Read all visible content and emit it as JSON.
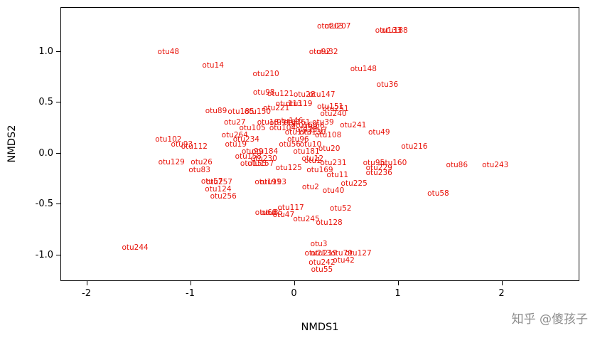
{
  "watermark": {
    "text": "知乎 @傻孩子"
  },
  "chart_data": {
    "type": "scatter",
    "title": "",
    "xlabel": "NMDS1",
    "ylabel": "NMDS2",
    "xlim": [
      -2.25,
      2.75
    ],
    "ylim": [
      -1.26,
      1.43
    ],
    "x_ticks": [
      -2,
      -1,
      0,
      1,
      2
    ],
    "x_tick_labels": [
      "-2",
      "-1",
      "0",
      "1",
      "2"
    ],
    "y_ticks": [
      -1.0,
      -0.5,
      0.0,
      0.5,
      1.0
    ],
    "y_tick_labels": [
      "-1.0",
      "-0.5",
      "0.0",
      "0.5",
      "1.0"
    ],
    "grid": false,
    "legend": false,
    "point_color": "#e8130a",
    "points": [
      {
        "label": "otu48",
        "x": -1.21,
        "y": 0.99
      },
      {
        "label": "otu14",
        "x": -0.78,
        "y": 0.86
      },
      {
        "label": "otu210",
        "x": -0.27,
        "y": 0.77
      },
      {
        "label": "otu92",
        "x": 0.25,
        "y": 0.99
      },
      {
        "label": "otu32",
        "x": 0.32,
        "y": 0.99
      },
      {
        "label": "otu148",
        "x": 0.67,
        "y": 0.82
      },
      {
        "label": "otu36",
        "x": 0.9,
        "y": 0.67
      },
      {
        "label": "otu203",
        "x": 0.35,
        "y": 1.24
      },
      {
        "label": "otu207",
        "x": 0.42,
        "y": 1.24
      },
      {
        "label": "otu133",
        "x": 0.91,
        "y": 1.2
      },
      {
        "label": "otu188",
        "x": 0.97,
        "y": 1.2
      },
      {
        "label": "otu98",
        "x": -0.29,
        "y": 0.59
      },
      {
        "label": "otu121",
        "x": -0.13,
        "y": 0.58
      },
      {
        "label": "otu28",
        "x": 0.1,
        "y": 0.57
      },
      {
        "label": "otu147",
        "x": 0.27,
        "y": 0.57
      },
      {
        "label": "otu89",
        "x": -0.75,
        "y": 0.41
      },
      {
        "label": "otu185",
        "x": -0.51,
        "y": 0.4
      },
      {
        "label": "otu150",
        "x": -0.35,
        "y": 0.4
      },
      {
        "label": "otu221",
        "x": -0.17,
        "y": 0.44
      },
      {
        "label": "otu113",
        "x": -0.05,
        "y": 0.48
      },
      {
        "label": "otu119",
        "x": 0.05,
        "y": 0.48
      },
      {
        "label": "otu151",
        "x": 0.35,
        "y": 0.45
      },
      {
        "label": "otu251",
        "x": 0.4,
        "y": 0.43
      },
      {
        "label": "otu240",
        "x": 0.38,
        "y": 0.38
      },
      {
        "label": "otu27",
        "x": -0.57,
        "y": 0.3
      },
      {
        "label": "otu105",
        "x": -0.4,
        "y": 0.24
      },
      {
        "label": "otu18",
        "x": -0.25,
        "y": 0.3
      },
      {
        "label": "otu146",
        "x": -0.04,
        "y": 0.31
      },
      {
        "label": "otu161",
        "x": 0.03,
        "y": 0.3
      },
      {
        "label": "otu166",
        "x": 0.1,
        "y": 0.27
      },
      {
        "label": "otu39",
        "x": 0.28,
        "y": 0.3
      },
      {
        "label": "otu241",
        "x": 0.57,
        "y": 0.27
      },
      {
        "label": "otu49",
        "x": 0.82,
        "y": 0.2
      },
      {
        "label": "otu264",
        "x": -0.57,
        "y": 0.17
      },
      {
        "label": "otu234",
        "x": -0.46,
        "y": 0.13
      },
      {
        "label": "otu173",
        "x": 0.04,
        "y": 0.2
      },
      {
        "label": "otu130",
        "x": 0.18,
        "y": 0.2
      },
      {
        "label": "otu108",
        "x": 0.33,
        "y": 0.17
      },
      {
        "label": "otu96",
        "x": 0.04,
        "y": 0.13
      },
      {
        "label": "otu102",
        "x": -1.21,
        "y": 0.13
      },
      {
        "label": "otu93",
        "x": -1.08,
        "y": 0.08
      },
      {
        "label": "otu112",
        "x": -0.96,
        "y": 0.06
      },
      {
        "label": "otu19",
        "x": -0.56,
        "y": 0.08
      },
      {
        "label": "otu99",
        "x": -0.4,
        "y": 0.01
      },
      {
        "label": "otu184",
        "x": -0.28,
        "y": 0.01
      },
      {
        "label": "otu56",
        "x": -0.04,
        "y": 0.08
      },
      {
        "label": "otu10",
        "x": 0.16,
        "y": 0.08
      },
      {
        "label": "otu181",
        "x": 0.12,
        "y": 0.01
      },
      {
        "label": "otu20",
        "x": 0.34,
        "y": 0.04
      },
      {
        "label": "otu158",
        "x": -0.44,
        "y": -0.04
      },
      {
        "label": "otu230",
        "x": -0.29,
        "y": -0.06
      },
      {
        "label": "otu12",
        "x": 0.18,
        "y": -0.06
      },
      {
        "label": "otu216",
        "x": 1.16,
        "y": 0.06
      },
      {
        "label": "otu129",
        "x": -1.18,
        "y": -0.09
      },
      {
        "label": "otu26",
        "x": -0.89,
        "y": -0.09
      },
      {
        "label": "otu83",
        "x": -0.91,
        "y": -0.17
      },
      {
        "label": "otu155",
        "x": -0.39,
        "y": -0.11
      },
      {
        "label": "otu157",
        "x": -0.32,
        "y": -0.11
      },
      {
        "label": "otu125",
        "x": -0.05,
        "y": -0.15
      },
      {
        "label": "otu1",
        "x": 0.18,
        "y": -0.08
      },
      {
        "label": "otu231",
        "x": 0.38,
        "y": -0.1
      },
      {
        "label": "otu169",
        "x": 0.25,
        "y": -0.17
      },
      {
        "label": "otu11",
        "x": 0.42,
        "y": -0.22
      },
      {
        "label": "otu95",
        "x": 0.77,
        "y": -0.1
      },
      {
        "label": "otu160",
        "x": 0.96,
        "y": -0.1
      },
      {
        "label": "otu229",
        "x": 0.82,
        "y": -0.15
      },
      {
        "label": "otu236",
        "x": 0.82,
        "y": -0.2
      },
      {
        "label": "otu86",
        "x": 1.57,
        "y": -0.12
      },
      {
        "label": "otu243",
        "x": 1.94,
        "y": -0.12
      },
      {
        "label": "otu58",
        "x": 1.39,
        "y": -0.4
      },
      {
        "label": "otu57",
        "x": -0.79,
        "y": -0.28
      },
      {
        "label": "otu257",
        "x": -0.72,
        "y": -0.29
      },
      {
        "label": "otu124",
        "x": -0.73,
        "y": -0.36
      },
      {
        "label": "otu256",
        "x": -0.68,
        "y": -0.43
      },
      {
        "label": "otu191",
        "x": -0.25,
        "y": -0.29
      },
      {
        "label": "otu193",
        "x": -0.2,
        "y": -0.29
      },
      {
        "label": "otu2",
        "x": 0.16,
        "y": -0.34
      },
      {
        "label": "otu40",
        "x": 0.38,
        "y": -0.37
      },
      {
        "label": "otu225",
        "x": 0.58,
        "y": -0.3
      },
      {
        "label": "otu117",
        "x": -0.03,
        "y": -0.54
      },
      {
        "label": "otu52",
        "x": 0.45,
        "y": -0.55
      },
      {
        "label": "otu47",
        "x": -0.1,
        "y": -0.61
      },
      {
        "label": "otu68",
        "x": -0.27,
        "y": -0.59
      },
      {
        "label": "otu85",
        "x": -0.21,
        "y": -0.59
      },
      {
        "label": "otu245",
        "x": 0.12,
        "y": -0.65
      },
      {
        "label": "otu128",
        "x": 0.34,
        "y": -0.69
      },
      {
        "label": "otu244",
        "x": -1.53,
        "y": -0.93
      },
      {
        "label": "otu3",
        "x": 0.24,
        "y": -0.9
      },
      {
        "label": "otu213",
        "x": 0.23,
        "y": -0.99
      },
      {
        "label": "otu219",
        "x": 0.29,
        "y": -0.99
      },
      {
        "label": "otu79",
        "x": 0.46,
        "y": -0.99
      },
      {
        "label": "otu127",
        "x": 0.62,
        "y": -0.99
      },
      {
        "label": "otu42",
        "x": 0.48,
        "y": -1.06
      },
      {
        "label": "otu242",
        "x": 0.27,
        "y": -1.08
      },
      {
        "label": "otu55",
        "x": 0.27,
        "y": -1.15
      },
      {
        "label": "otu104",
        "x": -0.11,
        "y": 0.24
      },
      {
        "label": "otu115",
        "x": -0.11,
        "y": 0.29
      },
      {
        "label": "otu73",
        "x": 0.12,
        "y": 0.23
      },
      {
        "label": "otu66",
        "x": 0.19,
        "y": 0.26
      },
      {
        "label": "otu7",
        "x": 0.24,
        "y": 0.22
      }
    ]
  }
}
